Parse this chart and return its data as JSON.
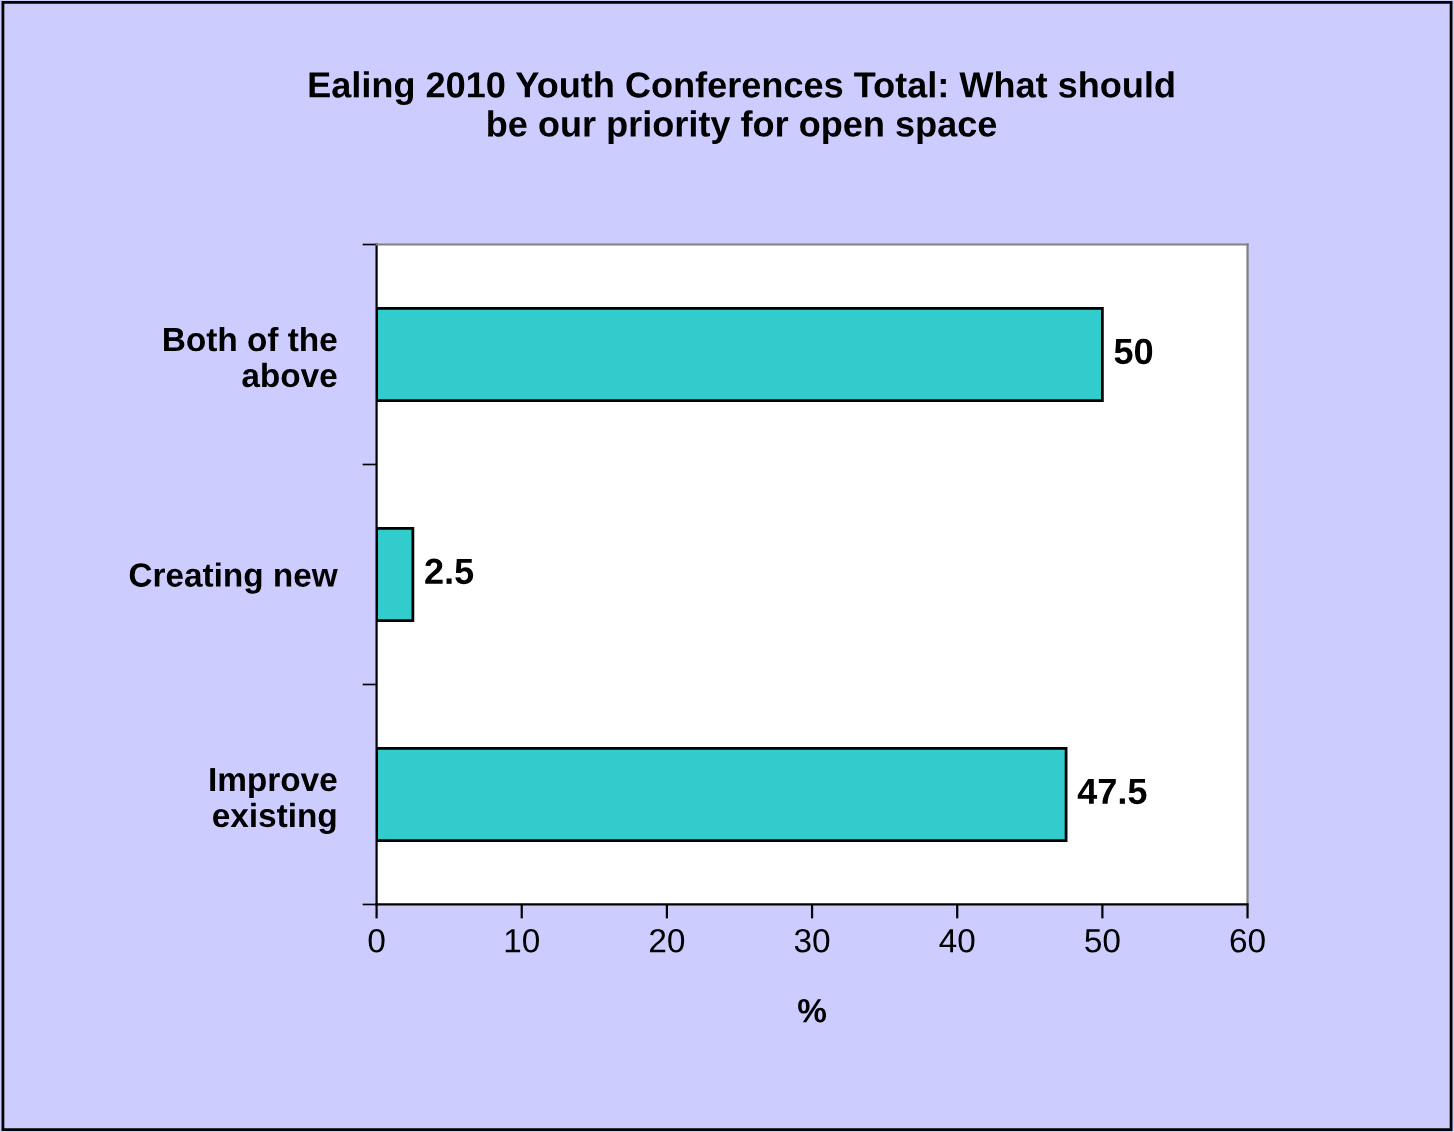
{
  "chart_data": {
    "type": "bar",
    "orientation": "horizontal",
    "title": "Ealing 2010 Youth Conferences Total: What should\nbe our priority for open space",
    "xlabel": "%",
    "categories": [
      "Both of the\nabove",
      "Creating new",
      "Improve\nexisting"
    ],
    "values": [
      50,
      2.5,
      47.5
    ],
    "color": "#33cccc",
    "xlim": [
      0,
      60
    ],
    "xticks": [
      0,
      10,
      20,
      30,
      40,
      50,
      60
    ],
    "grid": false,
    "data_labels": true
  }
}
